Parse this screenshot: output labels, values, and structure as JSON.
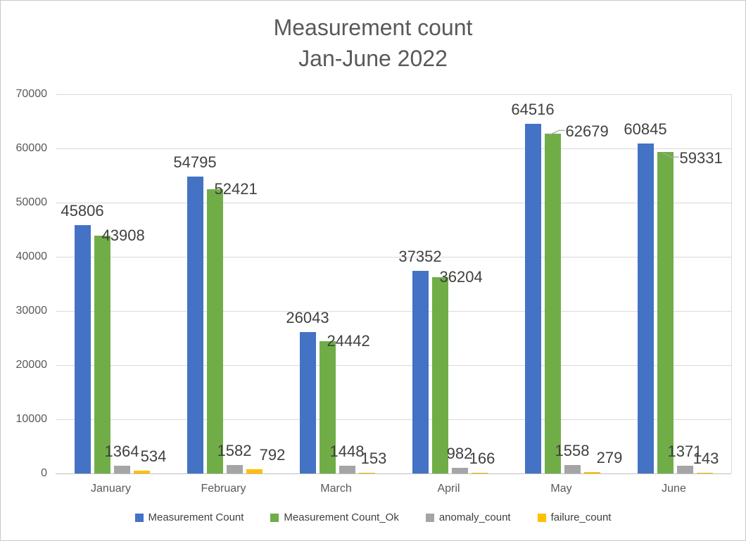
{
  "title": {
    "line1": "Measurement count",
    "line2": "Jan-June 2022"
  },
  "chart_data": {
    "type": "bar",
    "title": "Measurement count Jan-June 2022",
    "categories": [
      "January",
      "February",
      "March",
      "April",
      "May",
      "June"
    ],
    "series": [
      {
        "name": "Measurement Count",
        "color": "#4472C4",
        "values": [
          45806,
          54795,
          26043,
          37352,
          64516,
          60845
        ]
      },
      {
        "name": "Measurement Count_Ok",
        "color": "#70AD47",
        "values": [
          43908,
          52421,
          24442,
          36204,
          62679,
          59331
        ]
      },
      {
        "name": "anomaly_count",
        "color": "#A5A5A5",
        "values": [
          1364,
          1582,
          1448,
          982,
          1558,
          1371
        ]
      },
      {
        "name": "failure_count",
        "color": "#FFC000",
        "values": [
          534,
          792,
          153,
          166,
          279,
          143
        ]
      }
    ],
    "xlabel": "",
    "ylabel": "",
    "ylim": [
      0,
      70000
    ],
    "yticks": [
      0,
      10000,
      20000,
      30000,
      40000,
      50000,
      60000,
      70000
    ],
    "grid": true,
    "data_labels": true,
    "legend_position": "bottom",
    "colors": {
      "title_text": "#595959",
      "axis_text": "#595959",
      "data_label_text": "#404040",
      "gridline": "#D9D9D9",
      "axis_line": "#BFBFBF",
      "leader_line": "#A6A6A6"
    }
  }
}
